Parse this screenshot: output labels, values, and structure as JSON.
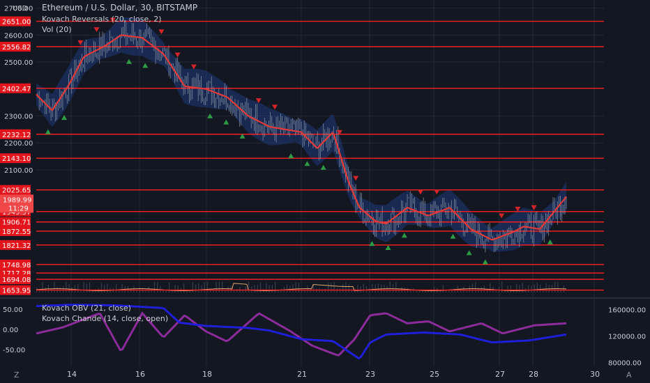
{
  "header": {
    "currency": "USD",
    "title": "Ethereum / U.S. Dollar, 30, BITSTAMP",
    "indicator1": "Kovach Reversals (20, close, 2)",
    "indicator2": "Vol (20)"
  },
  "subpane": {
    "indicator1": "Kovach OBV (21, close)",
    "indicator2": "Kovach Chande (14, close, open)"
  },
  "footer": {
    "left_icon": "Z",
    "right_icon": "A"
  },
  "colors": {
    "background": "#131722",
    "grid": "#232835",
    "level_line": "#ff1f1f",
    "ma_line": "#e23a3a",
    "band_fill": "#1e3a7a",
    "up_marker": "#2e9b45",
    "down_marker": "#d3232b",
    "volume_line": "#e0a46a",
    "obv_line": "#1f1fd8",
    "chande_line": "#8b2c9a"
  },
  "chart_data": [
    {
      "type": "line",
      "title": "Ethereum / U.S. Dollar, 30, BITSTAMP",
      "ylabel": "USD",
      "x_ticks": [
        "14",
        "16",
        "18",
        "21",
        "23",
        "25",
        "27",
        "28",
        "30"
      ],
      "y_ticks": [
        2700,
        2600,
        2500,
        2300,
        2200,
        2100
      ],
      "ylim": [
        1640,
        2730
      ],
      "price_levels": [
        2651.0,
        2556.82,
        2402.47,
        2232.12,
        2143.1,
        2025.65,
        1945.37,
        1906.71,
        1872.55,
        1821.32,
        1748.98,
        1717.28,
        1694.08,
        1653.95
      ],
      "current_price": {
        "price": "1989.99",
        "countdown": "11:29"
      },
      "series": [
        {
          "name": "Kovach Reversals (20, close, 2)",
          "x": [
            0,
            3,
            6,
            9,
            13,
            16,
            20,
            24,
            28,
            32,
            36,
            40,
            44,
            47,
            50,
            53,
            56,
            59,
            61,
            64,
            66,
            70,
            74,
            78,
            82,
            86,
            90,
            92,
            95,
            100
          ],
          "values": [
            2380,
            2320,
            2410,
            2520,
            2560,
            2600,
            2590,
            2530,
            2410,
            2400,
            2370,
            2300,
            2260,
            2250,
            2240,
            2180,
            2240,
            2050,
            1960,
            1910,
            1900,
            1960,
            1930,
            1960,
            1880,
            1840,
            1870,
            1890,
            1880,
            2000
          ]
        }
      ]
    },
    {
      "type": "line",
      "title": "Kovach OBV (21, close) / Kovach Chande (14, close, open)",
      "y_ticks_left": [
        50.0,
        0.0,
        -50.0
      ],
      "y_ticks_right": [
        160000.0,
        120000.0,
        80000.0
      ],
      "series": [
        {
          "name": "Kovach OBV (21, close)",
          "x": [
            0,
            7,
            15,
            24,
            27,
            32,
            40,
            44,
            50,
            56,
            61,
            63,
            66,
            73,
            80,
            86,
            93,
            100
          ],
          "values": [
            165000,
            167000,
            166000,
            162000,
            140000,
            135000,
            132000,
            128000,
            115000,
            112000,
            85000,
            110000,
            122000,
            125000,
            122000,
            110000,
            113000,
            122000
          ]
        },
        {
          "name": "Kovach Chande (14, close, open)",
          "x": [
            0,
            5,
            12,
            16,
            20,
            24,
            28,
            32,
            36,
            42,
            48,
            52,
            57,
            60,
            63,
            66,
            70,
            74,
            78,
            84,
            88,
            94,
            100
          ],
          "values": [
            -10,
            5,
            40,
            -55,
            40,
            -20,
            35,
            -5,
            -30,
            40,
            -5,
            -40,
            -65,
            -25,
            35,
            40,
            15,
            20,
            -5,
            15,
            -10,
            10,
            15
          ]
        }
      ]
    }
  ]
}
